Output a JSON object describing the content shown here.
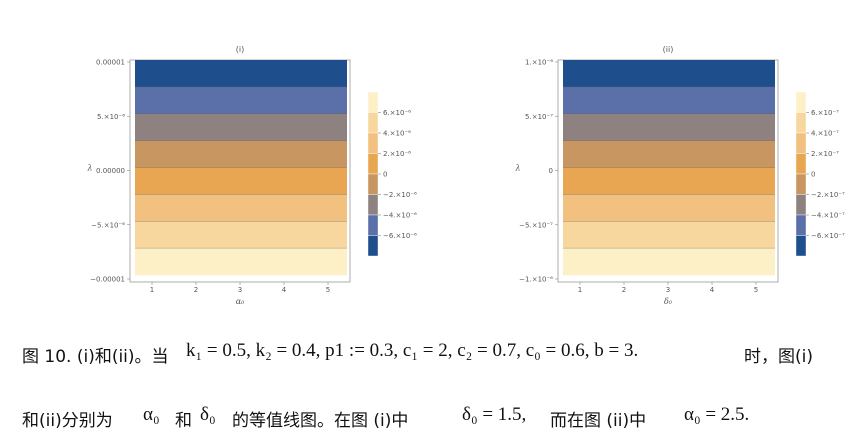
{
  "panels": [
    {
      "title": "(i)",
      "y_axis_label": "λ",
      "x_axis_label": "α₀",
      "y_ticks": [
        "0.00001",
        "5.×10⁻⁶",
        "0.00000",
        "−5.×10⁻⁶",
        "−0.00001"
      ],
      "x_ticks": [
        "1",
        "2",
        "3",
        "4",
        "5"
      ],
      "legend_labels": [
        "6.×10⁻⁶",
        "4.×10⁻⁶",
        "2.×10⁻⁶",
        "0",
        "−2.×10⁻⁶",
        "−4.×10⁻⁶",
        "−6.×10⁻⁶"
      ]
    },
    {
      "title": "(ii)",
      "y_axis_label": "λ",
      "x_axis_label": "δ₀",
      "y_ticks": [
        "1.×10⁻⁶",
        "5.×10⁻⁷",
        "0",
        "−5.×10⁻⁷",
        "−1.×10⁻⁶"
      ],
      "x_ticks": [
        "1",
        "2",
        "3",
        "4",
        "5"
      ],
      "legend_labels": [
        "6.×10⁻⁷",
        "4.×10⁻⁷",
        "2.×10⁻⁷",
        "0",
        "−2.×10⁻⁷",
        "−4.×10⁻⁷",
        "−6.×10⁻⁷"
      ]
    }
  ],
  "colors": {
    "bands_top_to_bottom": [
      "#1f4e8c",
      "#5b6fa8",
      "#8e8280",
      "#c89660",
      "#e8a653",
      "#f2c07f",
      "#f7d79d",
      "#fdf0c6"
    ],
    "legend_top_to_bottom": [
      "#fdf0c6",
      "#f7d79d",
      "#f2c07f",
      "#e8a653",
      "#c89660",
      "#8e8280",
      "#5b6fa8",
      "#1f4e8c"
    ]
  },
  "caption": {
    "line1_prefix": "图 10. (i)和(ii)。当",
    "line1_math": "k₁ = 0.5, k₂ = 0.4, p1 := 0.3, c₁ = 2, c₂ = 0.7, c₀ = 0.6, b = 3.",
    "line1_suffix": "时，图(i)",
    "line2_part1": "和(ii)分别为",
    "line2_alpha": "α₀",
    "line2_and": "和",
    "line2_delta": "δ₀",
    "line2_part2": "的等值线图。在图 (i)中",
    "line2_math1": "δ₀ = 1.5,",
    "line2_part3": "而在图 (ii)中",
    "line2_math2": "α₀ = 2.5."
  }
}
